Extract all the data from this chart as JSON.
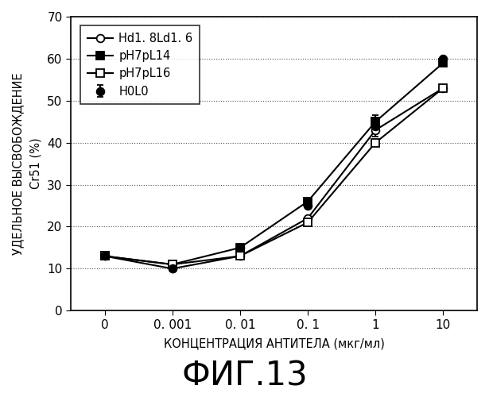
{
  "x_labels": [
    "0",
    "0. 001",
    "0. 01",
    "0. 1",
    "1",
    "10"
  ],
  "x_positions": [
    0,
    1,
    2,
    3,
    4,
    5
  ],
  "series": [
    {
      "label": "H0L0",
      "marker": "o",
      "marker_face": "black",
      "marker_edge": "black",
      "line_color": "black",
      "values": [
        13,
        10,
        15,
        25,
        44,
        60
      ],
      "has_errorbar": true
    },
    {
      "label": "Hd1. 8Ld1. 6",
      "marker": "o",
      "marker_face": "white",
      "marker_edge": "black",
      "line_color": "black",
      "values": [
        13,
        10,
        13,
        22,
        43,
        53
      ],
      "has_errorbar": false
    },
    {
      "label": "pH7pL14",
      "marker": "s",
      "marker_face": "black",
      "marker_edge": "black",
      "line_color": "black",
      "values": [
        13,
        11,
        15,
        26,
        45,
        59
      ],
      "has_errorbar": false
    },
    {
      "label": "pH7pL16",
      "marker": "s",
      "marker_face": "white",
      "marker_edge": "black",
      "line_color": "black",
      "values": [
        13,
        11,
        13,
        21,
        40,
        53
      ],
      "has_errorbar": false
    }
  ],
  "error_bar_x_index": 4,
  "error_bar_yerr": 2.5,
  "ylabel_line1": "УДЕЛЬНОЕ ВЫСВОБОЖДЕНИЕ",
  "ylabel_line2": "Cr51 (%)",
  "xlabel": "КОНЦЕНТРАЦИЯ АНТИТЕЛА (мкг/мл)",
  "title": "ФИГ.13",
  "ylim": [
    0,
    70
  ],
  "yticks": [
    0,
    10,
    20,
    30,
    40,
    50,
    60,
    70
  ],
  "grid_color": "#555555",
  "background_color": "#ffffff",
  "title_fontsize": 30,
  "axis_label_fontsize": 10.5,
  "tick_fontsize": 11,
  "legend_fontsize": 10.5
}
